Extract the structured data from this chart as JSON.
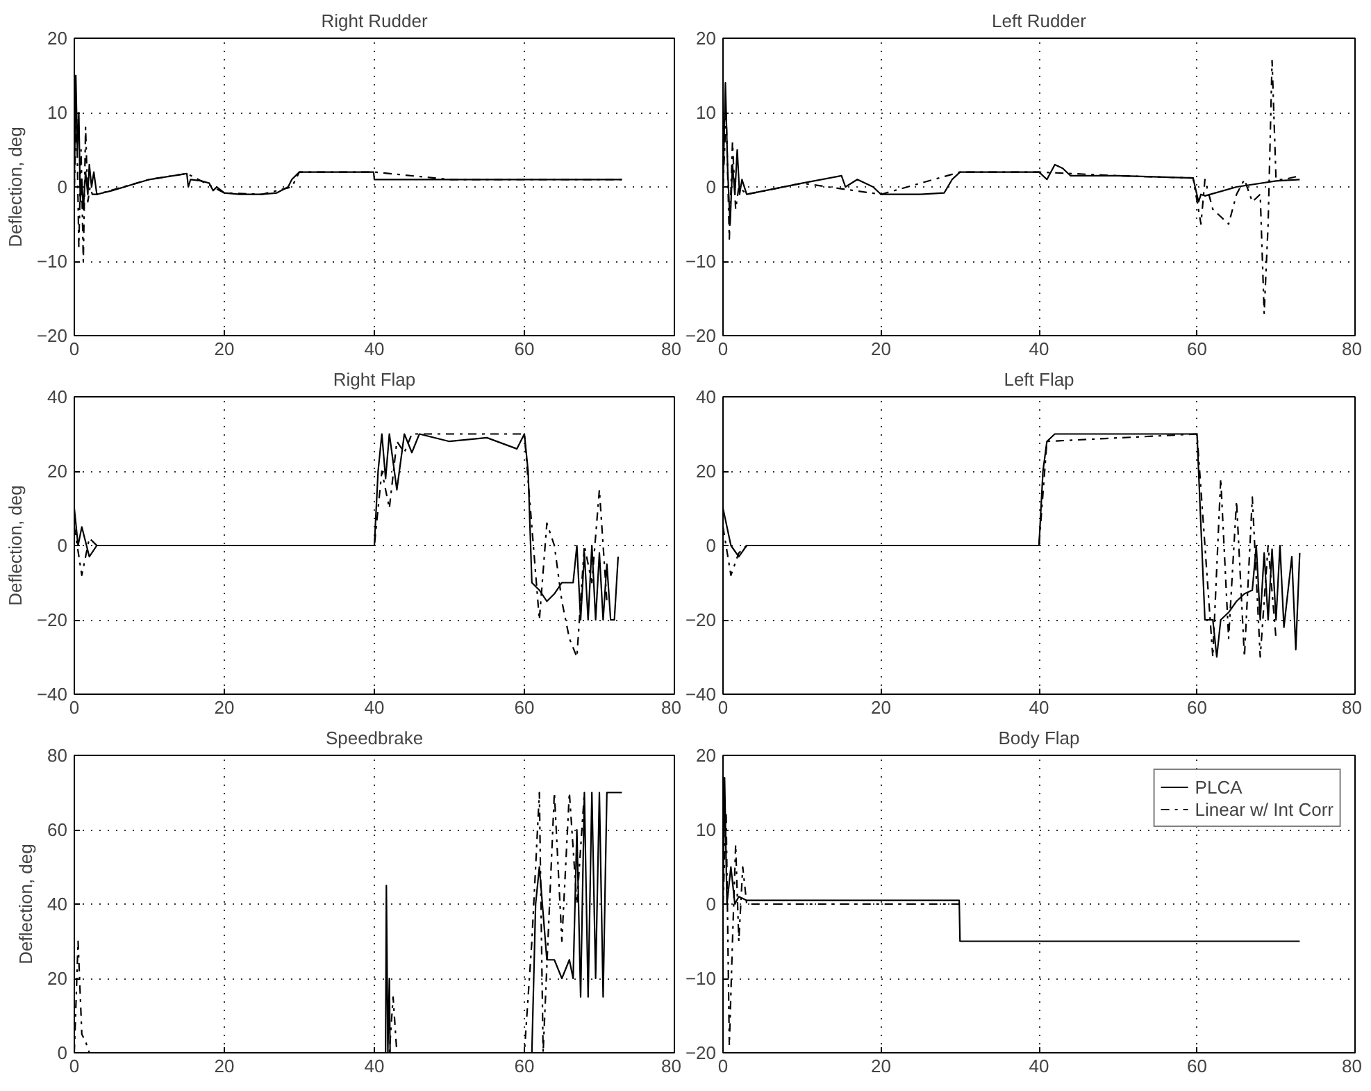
{
  "chart_data": [
    {
      "type": "line",
      "title": "Right Rudder",
      "ylabel": "Deflection, deg",
      "xlim": [
        0,
        80
      ],
      "xticks": [
        0,
        20,
        40,
        60,
        80
      ],
      "ylim": [
        -20,
        20
      ],
      "yticks": [
        -20,
        -10,
        0,
        10,
        20
      ],
      "grid": true,
      "legend": false,
      "series": [
        {
          "color": "#000000",
          "line_style": "solid",
          "x": [
            0,
            0.2,
            0.4,
            0.6,
            0.8,
            1,
            1.2,
            1.5,
            1.8,
            2,
            2.3,
            2.6,
            3,
            5,
            10,
            15,
            15.2,
            15.5,
            17,
            18,
            18.5,
            19,
            20,
            22,
            25,
            27,
            28.5,
            29,
            30,
            35,
            39.9,
            40,
            50,
            60,
            73
          ],
          "values": [
            0,
            15,
            5,
            10,
            -2,
            1,
            -3,
            2,
            -1,
            3,
            0,
            2,
            -1,
            -0.5,
            1,
            1.8,
            0,
            1,
            0.8,
            0.5,
            -0.5,
            0,
            -0.8,
            -1,
            -1,
            -0.8,
            0,
            1,
            2,
            2,
            2,
            1,
            1,
            1,
            1
          ]
        },
        {
          "color": "#000000",
          "line_style": "dashed",
          "x": [
            0,
            0.3,
            0.6,
            0.9,
            1.2,
            1.5,
            1.8,
            2.1,
            2.4,
            3,
            10,
            15,
            20,
            25,
            29,
            30,
            40,
            50,
            60,
            73
          ],
          "values": [
            0,
            10,
            -8,
            5,
            -10,
            8,
            -2,
            0,
            -1,
            -1,
            1,
            1.8,
            -0.8,
            -1,
            0,
            2,
            2,
            1,
            1,
            1
          ]
        }
      ]
    },
    {
      "type": "line",
      "title": "Left Rudder",
      "xlim": [
        0,
        80
      ],
      "xticks": [
        0,
        20,
        40,
        60,
        80
      ],
      "ylim": [
        -20,
        20
      ],
      "yticks": [
        -20,
        -10,
        0,
        10,
        20
      ],
      "grid": true,
      "legend": false,
      "series": [
        {
          "color": "#000000",
          "line_style": "solid",
          "x": [
            0,
            0.3,
            0.6,
            0.9,
            1.2,
            1.5,
            1.8,
            2.1,
            2.4,
            3,
            10,
            15,
            15.5,
            17,
            19,
            20,
            25,
            28,
            29,
            30,
            40,
            41,
            42,
            43,
            44,
            50,
            59.5,
            60.2,
            60.5,
            61,
            65,
            70,
            73
          ],
          "values": [
            0,
            14,
            2,
            -5,
            3,
            -1,
            5,
            -1,
            1,
            -1,
            0.5,
            1.5,
            0,
            1,
            0,
            -1,
            -1,
            -0.8,
            1,
            2,
            2,
            1,
            3,
            2.5,
            1.5,
            1.5,
            1.2,
            -2,
            -1,
            -1.2,
            0,
            0.8,
            1
          ]
        },
        {
          "color": "#000000",
          "line_style": "dashed",
          "x": [
            0,
            0.4,
            0.8,
            1.2,
            1.6,
            2,
            3,
            10,
            20,
            30,
            40,
            50,
            59.5,
            60.5,
            61,
            62,
            63,
            64,
            65,
            66,
            67,
            68,
            68.5,
            69,
            69.5,
            70,
            71,
            73
          ],
          "values": [
            0,
            10,
            -7,
            6,
            -3,
            0,
            -1,
            0.5,
            -1,
            2,
            2,
            1.5,
            1.2,
            -5,
            1,
            -3,
            -4,
            -5,
            -1,
            1,
            -2,
            -1,
            -17,
            -5,
            17,
            1,
            1,
            1.5
          ]
        }
      ]
    },
    {
      "type": "line",
      "title": "Right Flap",
      "ylabel": "Deflection, deg",
      "xlim": [
        0,
        80
      ],
      "xticks": [
        0,
        20,
        40,
        60,
        80
      ],
      "ylim": [
        -40,
        40
      ],
      "yticks": [
        -40,
        -20,
        0,
        20,
        40
      ],
      "grid": true,
      "legend": false,
      "series": [
        {
          "color": "#000000",
          "line_style": "solid",
          "x": [
            0,
            0.5,
            1,
            2,
            3,
            40,
            40.5,
            41,
            41.5,
            42,
            43,
            44,
            45,
            46,
            50,
            55,
            59,
            60,
            60.5,
            61,
            62,
            63,
            64,
            65,
            66.5,
            67,
            67.5,
            68,
            68.5,
            69,
            69.5,
            70,
            70.5,
            71,
            71.5,
            72,
            72.5
          ],
          "values": [
            10,
            0,
            5,
            -3,
            0,
            0,
            20,
            30,
            18,
            30,
            15,
            30,
            25,
            30,
            28,
            29,
            26,
            30,
            20,
            -10,
            -12,
            -15,
            -13,
            -10,
            -10,
            0,
            -20,
            -2,
            -20,
            0,
            -20,
            -2,
            -20,
            -5,
            -20,
            -20,
            -3
          ]
        },
        {
          "color": "#000000",
          "line_style": "dashed",
          "x": [
            0,
            1,
            2,
            3,
            40,
            41,
            42,
            43,
            44,
            45,
            60,
            61,
            62,
            63,
            64,
            65,
            66,
            67,
            68,
            69,
            70,
            71
          ],
          "values": [
            5,
            -8,
            2,
            0,
            0,
            20,
            10,
            28,
            25,
            30,
            30,
            5,
            -20,
            6,
            0,
            -15,
            -25,
            -30,
            0,
            -10,
            15,
            -15
          ]
        }
      ]
    },
    {
      "type": "line",
      "title": "Left Flap",
      "xlim": [
        0,
        80
      ],
      "xticks": [
        0,
        20,
        40,
        60,
        80
      ],
      "ylim": [
        -40,
        40
      ],
      "yticks": [
        -40,
        -20,
        0,
        20,
        40
      ],
      "grid": true,
      "legend": false,
      "series": [
        {
          "color": "#000000",
          "line_style": "solid",
          "x": [
            0,
            1,
            2,
            3,
            40,
            40.5,
            41,
            42,
            60,
            61,
            62,
            62.5,
            63,
            64,
            65,
            66,
            67,
            67.5,
            68,
            68.5,
            69,
            69.5,
            70,
            70.5,
            71,
            72,
            72.5,
            73
          ],
          "values": [
            10,
            0,
            -3,
            0,
            0,
            20,
            28,
            30,
            30,
            -20,
            -20,
            -30,
            -20,
            -18,
            -15,
            -13,
            -12,
            0,
            -20,
            -2,
            -20,
            -1,
            -20,
            0,
            -22,
            -3,
            -28,
            -2
          ]
        },
        {
          "color": "#000000",
          "line_style": "dashed",
          "x": [
            0,
            1,
            2,
            3,
            40,
            41,
            60,
            61,
            62,
            63,
            64,
            65,
            66,
            67,
            68,
            69,
            70
          ],
          "values": [
            5,
            -8,
            -2,
            0,
            0,
            28,
            30,
            0,
            -30,
            18,
            -25,
            12,
            -30,
            13,
            -30,
            0,
            -25
          ]
        }
      ]
    },
    {
      "type": "line",
      "title": "Speedbrake",
      "ylabel": "Deflection, deg",
      "xlim": [
        0,
        80
      ],
      "xticks": [
        0,
        20,
        40,
        60,
        80
      ],
      "ylim": [
        0,
        80
      ],
      "yticks": [
        0,
        20,
        40,
        60,
        80
      ],
      "grid": true,
      "legend": false,
      "series": [
        {
          "color": "#000000",
          "line_style": "solid",
          "x": [
            0,
            40,
            41.5,
            41.6,
            41.8,
            42,
            42.1,
            60,
            61,
            61.5,
            62,
            63,
            64,
            65,
            66,
            66.5,
            67,
            67.5,
            68,
            68.5,
            69,
            69.5,
            70,
            70.5,
            71,
            73
          ],
          "values": [
            0,
            0,
            0,
            45,
            0,
            20,
            0,
            0,
            0,
            40,
            50,
            25,
            25,
            20,
            25,
            20,
            60,
            15,
            70,
            15,
            70,
            20,
            70,
            15,
            70,
            70
          ]
        },
        {
          "color": "#000000",
          "line_style": "dashed",
          "x": [
            0,
            0.5,
            1,
            1.5,
            2,
            42,
            42.5,
            43,
            60,
            61,
            62,
            62.5,
            64,
            65,
            66,
            67,
            68
          ],
          "values": [
            0,
            30,
            5,
            3,
            0,
            0,
            15,
            0,
            0,
            30,
            70,
            0,
            70,
            30,
            70,
            40,
            70
          ]
        }
      ]
    },
    {
      "type": "line",
      "title": "Body Flap",
      "xlim": [
        0,
        80
      ],
      "xticks": [
        0,
        20,
        40,
        60,
        80
      ],
      "ylim": [
        -20,
        20
      ],
      "yticks": [
        -20,
        -10,
        0,
        10,
        20
      ],
      "grid": true,
      "legend": "top right",
      "series": [
        {
          "name": "PLCA",
          "color": "#000000",
          "line_style": "solid",
          "x": [
            0,
            0.2,
            0.5,
            1,
            1.5,
            2,
            3,
            20,
            29.9,
            30,
            73
          ],
          "values": [
            0,
            17,
            0,
            5,
            0,
            1,
            0.5,
            0.5,
            0.5,
            -5,
            -5
          ]
        },
        {
          "name": "Linear w/ Int Corr",
          "color": "#000000",
          "line_style": "dashed",
          "x": [
            0,
            0.4,
            0.8,
            1.2,
            1.6,
            2,
            2.5,
            3,
            30
          ],
          "values": [
            0,
            12,
            -19,
            -5,
            8,
            -5,
            5,
            0,
            0
          ]
        }
      ]
    }
  ]
}
